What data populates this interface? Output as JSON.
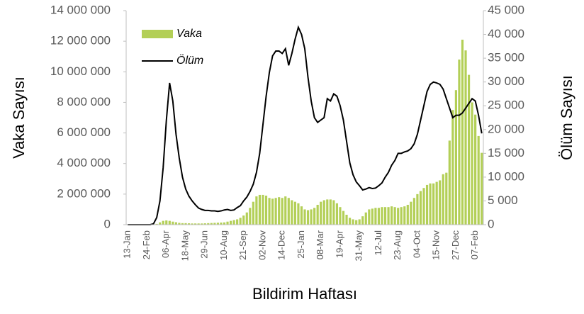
{
  "chart_data": {
    "type": "bar",
    "x_label": "Bildirim Haftası",
    "y_label": "Vaka Sayısı",
    "y2_label": "Ölüm Sayısı",
    "categories": [
      "13-Jan",
      null,
      null,
      null,
      null,
      null,
      "24-Feb",
      null,
      null,
      null,
      null,
      null,
      "06-Apr",
      null,
      null,
      null,
      null,
      null,
      "18-May",
      null,
      null,
      null,
      null,
      null,
      "29-Jun",
      null,
      null,
      null,
      null,
      null,
      "10-Aug",
      null,
      null,
      null,
      null,
      null,
      "21-Sep",
      null,
      null,
      null,
      null,
      null,
      "02-Nov",
      null,
      null,
      null,
      null,
      null,
      "14-Dec",
      null,
      null,
      null,
      null,
      null,
      "25-Jan",
      null,
      null,
      null,
      null,
      null,
      "08-Mar",
      null,
      null,
      null,
      null,
      null,
      "19-Apr",
      null,
      null,
      null,
      null,
      null,
      "31-May",
      null,
      null,
      null,
      null,
      null,
      "12-Jul",
      null,
      null,
      null,
      null,
      null,
      "23-Aug",
      null,
      null,
      null,
      null,
      null,
      "04-Oct",
      null,
      null,
      null,
      null,
      null,
      "15-Nov",
      null,
      null,
      null,
      null,
      null,
      "27-Dec",
      null,
      null,
      null,
      null,
      null,
      "07-Feb",
      null,
      null
    ],
    "series": [
      {
        "name": "Vaka",
        "type": "bar",
        "color": "#b3cf57",
        "axis": "y",
        "values": [
          0,
          0,
          0,
          0,
          0,
          0,
          0,
          0,
          0,
          50000,
          150000,
          250000,
          280000,
          250000,
          200000,
          160000,
          120000,
          100000,
          100000,
          90000,
          80000,
          80000,
          80000,
          80000,
          90000,
          100000,
          110000,
          120000,
          130000,
          140000,
          150000,
          200000,
          250000,
          300000,
          350000,
          450000,
          600000,
          800000,
          1100000,
          1500000,
          1850000,
          1950000,
          1950000,
          1900000,
          1750000,
          1700000,
          1750000,
          1800000,
          1750000,
          1850000,
          1750000,
          1600000,
          1500000,
          1400000,
          1200000,
          1000000,
          950000,
          1000000,
          1100000,
          1300000,
          1500000,
          1600000,
          1650000,
          1650000,
          1600000,
          1400000,
          1150000,
          900000,
          650000,
          450000,
          350000,
          300000,
          350000,
          550000,
          800000,
          1000000,
          1050000,
          1100000,
          1100000,
          1150000,
          1150000,
          1150000,
          1200000,
          1150000,
          1100000,
          1150000,
          1200000,
          1300000,
          1500000,
          1750000,
          2000000,
          2200000,
          2400000,
          2600000,
          2700000,
          2700000,
          2800000,
          2900000,
          3300000,
          3400000,
          5500000,
          7500000,
          8800000,
          10800000,
          12100000,
          11400000,
          9800000,
          8000000,
          7200000,
          5800000,
          4700000
        ]
      },
      {
        "name": "Ölüm",
        "type": "line",
        "color": "#000000",
        "axis": "y2",
        "values": [
          0,
          0,
          0,
          0,
          0,
          0,
          0,
          0,
          200,
          1500,
          5000,
          12000,
          22000,
          29800,
          26000,
          19000,
          14000,
          10000,
          7500,
          6000,
          5000,
          4200,
          3500,
          3200,
          3000,
          3000,
          2900,
          2900,
          2800,
          2900,
          3100,
          3200,
          3000,
          3100,
          3600,
          4000,
          5000,
          5800,
          7000,
          8500,
          11000,
          15000,
          21000,
          27000,
          32000,
          35500,
          36500,
          36500,
          36000,
          37000,
          33500,
          36000,
          39000,
          41500,
          40000,
          37000,
          31000,
          26000,
          22500,
          21500,
          22000,
          22500,
          26500,
          26000,
          27500,
          27000,
          25000,
          22000,
          17500,
          13000,
          10500,
          9000,
          8200,
          7300,
          7500,
          7800,
          7600,
          7700,
          8200,
          8800,
          10000,
          11000,
          12500,
          13500,
          15000,
          15000,
          15300,
          15500,
          16000,
          17000,
          19000,
          22000,
          25000,
          28000,
          29500,
          30000,
          29800,
          29500,
          28500,
          26500,
          24500,
          22500,
          23000,
          23000,
          23500,
          24500,
          25500,
          26500,
          26000,
          23000,
          19200
        ]
      }
    ],
    "ylim": [
      0,
      14000000
    ],
    "yticks": [
      0,
      {
        "value": 2000000,
        "label": "2 000 000"
      },
      {
        "value": 4000000,
        "label": "4 000 000"
      },
      {
        "value": 6000000,
        "label": "6 000 000"
      },
      {
        "value": 8000000,
        "label": "8 000 000"
      },
      {
        "value": 10000000,
        "label": "10 000 000"
      },
      {
        "value": 12000000,
        "label": "12 000 000"
      },
      {
        "value": 14000000,
        "label": "14 000 000"
      }
    ],
    "y2lim": [
      0,
      45000
    ],
    "y2ticks": [
      0,
      {
        "value": 5000,
        "label": "5 000"
      },
      {
        "value": 10000,
        "label": "10 000"
      },
      {
        "value": 15000,
        "label": "15 000"
      },
      {
        "value": 20000,
        "label": "20 000"
      },
      {
        "value": 25000,
        "label": "25 000"
      },
      {
        "value": 30000,
        "label": "30 000"
      },
      {
        "value": 35000,
        "label": "35 000"
      },
      {
        "value": 40000,
        "label": "40 000"
      },
      {
        "value": 45000,
        "label": "45 000"
      }
    ],
    "grid": false,
    "legend": "top-left"
  }
}
